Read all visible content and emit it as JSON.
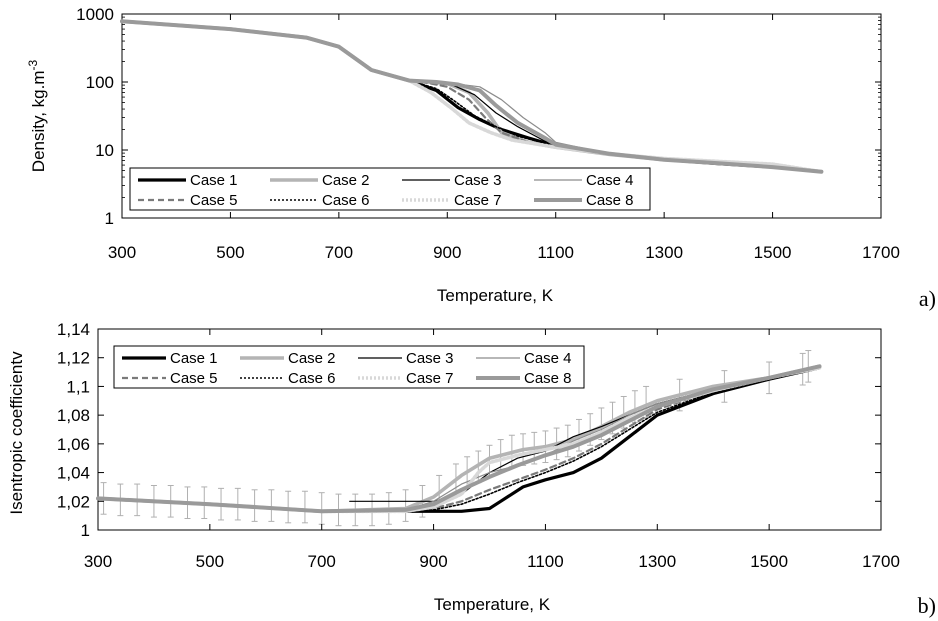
{
  "chart_data": [
    {
      "panel": "a)",
      "type": "line",
      "title": "",
      "xlabel": "Temperature, K",
      "ylabel": "Density, kg.m",
      "ylabel_sup": "-3",
      "xlim": [
        300,
        1700
      ],
      "ylim": [
        1,
        1000
      ],
      "yscale": "log",
      "xticks": [
        "300",
        "500",
        "700",
        "900",
        "1100",
        "1300",
        "1500",
        "1700"
      ],
      "yticks": [
        "1",
        "10",
        "100",
        "1000"
      ],
      "legend": "bottom-left, 4 columns",
      "series": [
        {
          "name": "Case 1",
          "style": "thick-black",
          "x": [
            300,
            500,
            640,
            700,
            760,
            830,
            880,
            920,
            960,
            1000,
            1050,
            1100,
            1200,
            1300,
            1400,
            1500,
            1590
          ],
          "y": [
            780,
            600,
            450,
            330,
            150,
            105,
            75,
            42,
            28,
            20,
            15,
            11.5,
            8.8,
            7.2,
            6.3,
            5.6,
            4.8
          ]
        },
        {
          "name": "Case 2",
          "style": "thick-lightgray",
          "x": [
            300,
            500,
            640,
            700,
            760,
            830,
            870,
            900,
            940,
            975,
            1000,
            1050,
            1100,
            1200,
            1300,
            1400,
            1500,
            1590
          ],
          "y": [
            780,
            600,
            450,
            330,
            150,
            105,
            100,
            95,
            70,
            35,
            18,
            13,
            11,
            8.6,
            7.2,
            6.5,
            5.8,
            4.8
          ]
        },
        {
          "name": "Case 3",
          "style": "thin-black",
          "x": [
            300,
            500,
            640,
            700,
            760,
            830,
            870,
            910,
            950,
            990,
            1030,
            1080,
            1100,
            1200,
            1300,
            1400,
            1500,
            1590
          ],
          "y": [
            780,
            600,
            450,
            330,
            150,
            105,
            98,
            90,
            65,
            35,
            22,
            13.5,
            11.5,
            8.7,
            7.2,
            6.4,
            5.6,
            4.8
          ]
        },
        {
          "name": "Case 4",
          "style": "thin-gray",
          "x": [
            300,
            500,
            640,
            700,
            760,
            830,
            870,
            910,
            960,
            1000,
            1040,
            1080,
            1100,
            1200,
            1300,
            1400,
            1500,
            1590
          ],
          "y": [
            780,
            600,
            450,
            330,
            150,
            105,
            100,
            95,
            85,
            55,
            30,
            18,
            13,
            8.8,
            7.2,
            6.5,
            5.8,
            4.8
          ]
        },
        {
          "name": "Case 5",
          "style": "dashed-gray",
          "x": [
            300,
            500,
            640,
            700,
            760,
            830,
            870,
            900,
            940,
            970,
            1000,
            1050,
            1100,
            1200,
            1300,
            1400,
            1500,
            1590
          ],
          "y": [
            780,
            600,
            450,
            330,
            150,
            105,
            95,
            85,
            55,
            30,
            18,
            13,
            11,
            8.6,
            7.2,
            6.5,
            5.6,
            4.8
          ]
        },
        {
          "name": "Case 6",
          "style": "dotted-black",
          "x": [
            300,
            500,
            640,
            700,
            760,
            830,
            880,
            910,
            950,
            990,
            1030,
            1100,
            1200,
            1300,
            1400,
            1500,
            1590
          ],
          "y": [
            780,
            600,
            450,
            330,
            150,
            105,
            80,
            55,
            32,
            22,
            16,
            11.5,
            8.8,
            7.2,
            6.4,
            5.6,
            4.8
          ]
        },
        {
          "name": "Case 7",
          "style": "dotted-lightgray-thick",
          "x": [
            300,
            500,
            640,
            700,
            760,
            830,
            870,
            910,
            940,
            980,
            1020,
            1100,
            1200,
            1300,
            1400,
            1500,
            1590
          ],
          "y": [
            780,
            600,
            450,
            330,
            150,
            105,
            70,
            40,
            25,
            18,
            14,
            11,
            8.8,
            7.5,
            6.8,
            6.2,
            4.8
          ]
        },
        {
          "name": "Case 8",
          "style": "thick-gray",
          "x": [
            300,
            500,
            640,
            700,
            760,
            830,
            880,
            920,
            960,
            990,
            1030,
            1080,
            1100,
            1200,
            1300,
            1400,
            1500,
            1590
          ],
          "y": [
            780,
            600,
            450,
            330,
            150,
            105,
            100,
            92,
            75,
            45,
            25,
            15,
            12,
            8.8,
            7.2,
            6.4,
            5.6,
            4.8
          ]
        }
      ]
    },
    {
      "panel": "b)",
      "type": "line",
      "title": "",
      "xlabel": "Temperature, K",
      "ylabel": "Isentropic coefficientv",
      "xlim": [
        300,
        1700
      ],
      "ylim": [
        1,
        1.14
      ],
      "yscale": "linear",
      "xticks": [
        "300",
        "500",
        "700",
        "900",
        "1100",
        "1300",
        "1500",
        "1700"
      ],
      "yticks": [
        "1",
        "1,02",
        "1,04",
        "1,06",
        "1,08",
        "1,1",
        "1,12",
        "1,14"
      ],
      "legend": "top-left, 4 columns",
      "error_bars": {
        "series": "Case 2",
        "x": [
          310,
          340,
          370,
          400,
          430,
          460,
          490,
          520,
          550,
          580,
          610,
          640,
          670,
          700,
          730,
          760,
          790,
          820,
          850,
          880,
          910,
          940,
          960,
          980,
          1000,
          1020,
          1040,
          1060,
          1080,
          1100,
          1120,
          1140,
          1160,
          1180,
          1200,
          1220,
          1240,
          1260,
          1280,
          1340,
          1420,
          1500,
          1560,
          1570
        ],
        "y": [
          1.022,
          1.021,
          1.021,
          1.02,
          1.02,
          1.019,
          1.019,
          1.018,
          1.018,
          1.017,
          1.017,
          1.016,
          1.016,
          1.015,
          1.014,
          1.014,
          1.014,
          1.015,
          1.017,
          1.02,
          1.027,
          1.035,
          1.04,
          1.044,
          1.048,
          1.052,
          1.055,
          1.056,
          1.057,
          1.058,
          1.06,
          1.062,
          1.066,
          1.07,
          1.074,
          1.078,
          1.082,
          1.086,
          1.089,
          1.094,
          1.1,
          1.106,
          1.112,
          1.114
        ],
        "err": 0.011
      },
      "series": [
        {
          "name": "Case 1",
          "style": "thick-black",
          "x": [
            300,
            500,
            700,
            850,
            900,
            950,
            1000,
            1020,
            1060,
            1100,
            1150,
            1200,
            1250,
            1300,
            1400,
            1500,
            1590
          ],
          "y": [
            1.022,
            1.018,
            1.013,
            1.013,
            1.013,
            1.013,
            1.015,
            1.02,
            1.03,
            1.035,
            1.04,
            1.05,
            1.065,
            1.08,
            1.095,
            1.105,
            1.113
          ]
        },
        {
          "name": "Case 2",
          "style": "thick-lightgray",
          "x": [
            300,
            500,
            700,
            850,
            900,
            950,
            1000,
            1060,
            1100,
            1150,
            1200,
            1250,
            1300,
            1400,
            1500,
            1590
          ],
          "y": [
            1.022,
            1.018,
            1.013,
            1.015,
            1.023,
            1.038,
            1.05,
            1.056,
            1.058,
            1.063,
            1.072,
            1.082,
            1.09,
            1.1,
            1.106,
            1.114
          ]
        },
        {
          "name": "Case 3",
          "style": "thin-black",
          "x": [
            750,
            800,
            850,
            900,
            950,
            1000,
            1050,
            1100,
            1150,
            1200,
            1250,
            1300,
            1400,
            1500,
            1590
          ],
          "y": [
            1.02,
            1.02,
            1.02,
            1.02,
            1.025,
            1.04,
            1.05,
            1.055,
            1.065,
            1.072,
            1.08,
            1.088,
            1.098,
            1.106,
            1.113
          ]
        },
        {
          "name": "Case 4",
          "style": "thin-gray",
          "x": [
            300,
            500,
            700,
            850,
            900,
            950,
            1000,
            1050,
            1100,
            1150,
            1200,
            1250,
            1300,
            1400,
            1500,
            1590
          ],
          "y": [
            1.022,
            1.018,
            1.013,
            1.014,
            1.02,
            1.032,
            1.04,
            1.045,
            1.052,
            1.062,
            1.07,
            1.08,
            1.088,
            1.098,
            1.106,
            1.113
          ]
        },
        {
          "name": "Case 5",
          "style": "dashed-gray",
          "x": [
            300,
            500,
            700,
            850,
            900,
            950,
            1000,
            1050,
            1100,
            1150,
            1200,
            1250,
            1300,
            1400,
            1500,
            1590
          ],
          "y": [
            1.022,
            1.018,
            1.013,
            1.013,
            1.015,
            1.02,
            1.028,
            1.035,
            1.042,
            1.05,
            1.06,
            1.072,
            1.084,
            1.097,
            1.106,
            1.113
          ]
        },
        {
          "name": "Case 6",
          "style": "dotted-black",
          "x": [
            300,
            500,
            700,
            850,
            900,
            950,
            1000,
            1050,
            1100,
            1150,
            1200,
            1250,
            1300,
            1400,
            1500,
            1590
          ],
          "y": [
            1.022,
            1.018,
            1.013,
            1.013,
            1.014,
            1.018,
            1.025,
            1.033,
            1.04,
            1.048,
            1.058,
            1.07,
            1.082,
            1.096,
            1.106,
            1.113
          ]
        },
        {
          "name": "Case 7",
          "style": "dotted-lightgray-thick",
          "x": [
            300,
            500,
            700,
            850,
            900,
            950,
            980,
            1000,
            1050,
            1100,
            1150,
            1200,
            1250,
            1300,
            1400,
            1500,
            1590
          ],
          "y": [
            1.022,
            1.018,
            1.013,
            1.013,
            1.016,
            1.025,
            1.04,
            1.047,
            1.052,
            1.056,
            1.06,
            1.068,
            1.078,
            1.086,
            1.097,
            1.106,
            1.113
          ]
        },
        {
          "name": "Case 8",
          "style": "thick-gray",
          "x": [
            300,
            500,
            700,
            850,
            900,
            950,
            1000,
            1050,
            1100,
            1150,
            1200,
            1250,
            1300,
            1400,
            1500,
            1590
          ],
          "y": [
            1.022,
            1.018,
            1.013,
            1.014,
            1.018,
            1.028,
            1.037,
            1.045,
            1.052,
            1.058,
            1.066,
            1.076,
            1.086,
            1.098,
            1.106,
            1.114
          ]
        }
      ]
    }
  ],
  "styles": {
    "thick-black": {
      "stroke": "#000000",
      "width": 3.2,
      "dash": ""
    },
    "thick-lightgray": {
      "stroke": "#b4b4b4",
      "width": 3.6,
      "dash": ""
    },
    "thin-black": {
      "stroke": "#000000",
      "width": 1.2,
      "dash": ""
    },
    "thin-gray": {
      "stroke": "#8c8c8c",
      "width": 1.2,
      "dash": ""
    },
    "dashed-gray": {
      "stroke": "#7a7a7a",
      "width": 2.2,
      "dash": "6,4"
    },
    "dotted-black": {
      "stroke": "#000000",
      "width": 1.6,
      "dash": "2,2"
    },
    "dotted-lightgray-thick": {
      "stroke": "#d8d8d8",
      "width": 3.6,
      "dash": "2,2"
    },
    "thick-gray": {
      "stroke": "#9a9a9a",
      "width": 4,
      "dash": ""
    },
    "errorbar": {
      "stroke": "#b0b0b0",
      "width": 1
    }
  }
}
